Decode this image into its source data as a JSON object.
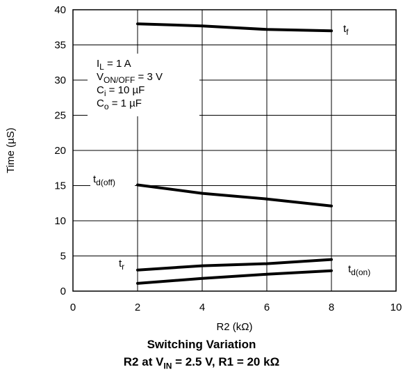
{
  "chart_data": {
    "type": "line",
    "title": "Switching Variation",
    "subtitle": {
      "pre": "R2 at V",
      "sub": "IN",
      "post": " = 2.5 V, R1 = 20 kΩ"
    },
    "xlabel": "R2 (kΩ)",
    "ylabel": "Time  (µS)",
    "xlim": [
      0,
      10
    ],
    "ylim": [
      0,
      40
    ],
    "xticks": [
      "0",
      "2",
      "4",
      "6",
      "8",
      "10"
    ],
    "yticks": [
      "0",
      "5",
      "10",
      "15",
      "20",
      "25",
      "30",
      "35",
      "40"
    ],
    "grid": true,
    "series": [
      {
        "name": "t_f",
        "label_base": "t",
        "label_sub": "f",
        "x": [
          2,
          4,
          6,
          8
        ],
        "y": [
          38,
          37.7,
          37.2,
          37
        ]
      },
      {
        "name": "t_d(off)",
        "label_base": "t",
        "label_sub": "d(off)",
        "x": [
          2,
          4,
          6,
          8
        ],
        "y": [
          15.1,
          13.9,
          13.1,
          12.1
        ]
      },
      {
        "name": "t_r",
        "label_base": "t",
        "label_sub": "r",
        "x": [
          2,
          4,
          6,
          8
        ],
        "y": [
          3,
          3.6,
          3.9,
          4.5
        ]
      },
      {
        "name": "t_d(on)",
        "label_base": "t",
        "label_sub": "d(on)",
        "x": [
          2,
          4,
          6,
          8
        ],
        "y": [
          1.1,
          1.8,
          2.4,
          2.9
        ]
      }
    ],
    "conditions": [
      {
        "base": "I",
        "sub": "L",
        "rest": " = 1 A"
      },
      {
        "base": "V",
        "sub": "ON/OFF",
        "rest": " = 3 V"
      },
      {
        "base": "C",
        "sub": "i",
        "rest": " = 10 µF"
      },
      {
        "base": "C",
        "sub": "o",
        "rest": " = 1 µF"
      }
    ]
  }
}
